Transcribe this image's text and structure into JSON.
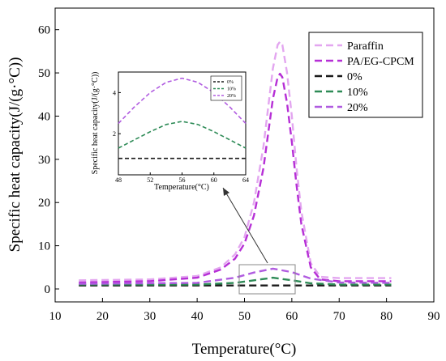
{
  "chart_data": {
    "type": "line",
    "title": "",
    "xlabel": "Temperature(°C)",
    "ylabel": "Specific heat capacity(J/(g·°C))",
    "xlim": [
      10,
      90
    ],
    "ylim": [
      -3,
      65
    ],
    "xticks": [
      10,
      20,
      30,
      40,
      50,
      60,
      70,
      80,
      90
    ],
    "yticks": [
      0,
      10,
      20,
      30,
      40,
      50,
      60
    ],
    "grid": false,
    "legend_position": "top-right",
    "series": [
      {
        "name": "Paraffin",
        "color": "#e3a6f0",
        "x": [
          15,
          30,
          40,
          45,
          48,
          50,
          52,
          54,
          55,
          56,
          57,
          57.5,
          58,
          59,
          60,
          61,
          62,
          64,
          66,
          70,
          81
        ],
        "y": [
          2.0,
          2.2,
          3.0,
          5.0,
          8.0,
          12.0,
          20.0,
          33.0,
          42.0,
          51.0,
          56.5,
          57.2,
          56.5,
          50.0,
          40.0,
          28.0,
          18.0,
          6.0,
          2.8,
          2.5,
          2.5
        ]
      },
      {
        "name": "PA/EG-CPCM",
        "color": "#b62fd6",
        "x": [
          15,
          30,
          40,
          45,
          48,
          50,
          52,
          54,
          55,
          56,
          57,
          57.5,
          58,
          59,
          60,
          61,
          62,
          64,
          66,
          70,
          81
        ],
        "y": [
          1.5,
          1.8,
          2.6,
          4.5,
          7.0,
          10.5,
          17.0,
          28.0,
          36.0,
          44.0,
          49.0,
          49.8,
          49.0,
          43.0,
          34.0,
          24.0,
          15.0,
          5.0,
          2.2,
          1.8,
          1.8
        ]
      },
      {
        "name": "0%",
        "color": "#1a1a1a",
        "x": [
          15,
          30,
          50,
          65,
          81
        ],
        "y": [
          0.8,
          0.8,
          0.8,
          0.8,
          0.8
        ]
      },
      {
        "name": "10%",
        "color": "#2e8b57",
        "x": [
          15,
          40,
          48,
          52,
          56,
          60,
          64,
          70,
          81
        ],
        "y": [
          1.0,
          1.0,
          1.4,
          2.0,
          2.6,
          2.0,
          1.3,
          1.0,
          1.0
        ]
      },
      {
        "name": "20%",
        "color": "#b05be0",
        "x": [
          15,
          40,
          48,
          52,
          56,
          60,
          64,
          70,
          81
        ],
        "y": [
          1.2,
          1.4,
          2.6,
          3.8,
          4.7,
          3.9,
          2.4,
          1.5,
          1.4
        ]
      }
    ],
    "inset": {
      "xlabel": "Temperature(°C)",
      "ylabel": "Specific heat capacity(J/(g·°C))",
      "xlim": [
        48,
        64
      ],
      "ylim": [
        0,
        5
      ],
      "xticks": [
        48,
        52,
        56,
        60,
        64
      ],
      "yticks": [
        2,
        4
      ],
      "legend": [
        "0%",
        "10%",
        "20%"
      ],
      "series": [
        {
          "name": "0%",
          "color": "#1a1a1a",
          "x": [
            48,
            52,
            56,
            60,
            64
          ],
          "y": [
            0.8,
            0.8,
            0.8,
            0.8,
            0.8
          ]
        },
        {
          "name": "10%",
          "color": "#2e8b57",
          "x": [
            48,
            50,
            52,
            54,
            56,
            58,
            60,
            62,
            64
          ],
          "y": [
            1.3,
            1.7,
            2.1,
            2.45,
            2.6,
            2.45,
            2.1,
            1.7,
            1.3
          ]
        },
        {
          "name": "20%",
          "color": "#b05be0",
          "x": [
            48,
            50,
            52,
            54,
            56,
            58,
            60,
            62,
            64
          ],
          "y": [
            2.5,
            3.3,
            4.0,
            4.5,
            4.7,
            4.5,
            4.0,
            3.3,
            2.5
          ]
        }
      ]
    }
  }
}
